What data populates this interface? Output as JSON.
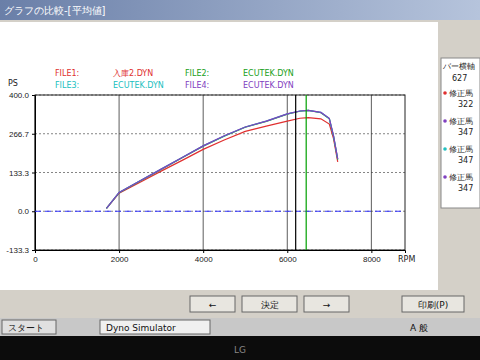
{
  "window": {
    "title": "グラフの比較-[平均値]"
  },
  "chart_data": {
    "type": "line",
    "y_label": "PS",
    "x_label": "RPM",
    "x": [
      1700,
      2000,
      2500,
      3000,
      3500,
      4000,
      4500,
      5000,
      5500,
      6000,
      6300,
      6500,
      6800,
      7000,
      7100,
      7200
    ],
    "series": [
      {
        "file": "FILE1:",
        "name": "入庫2.DYN",
        "color": "#e03030",
        "line_style": "solid",
        "values": [
          10,
          62,
          100,
          138,
          175,
          213,
          245,
          275,
          293,
          310,
          320,
          322,
          318,
          300,
          250,
          170
        ]
      },
      {
        "file": "FILE2:",
        "name": "ECUTEK.DYN",
        "color": "#20a020",
        "line_style": "solid",
        "values": [
          10,
          64,
          104,
          144,
          184,
          224,
          258,
          289,
          309,
          334,
          344,
          347,
          339,
          318,
          258,
          178
        ]
      },
      {
        "file": "FILE3:",
        "name": "ECUTEK.DYN",
        "color": "#20c0c0",
        "line_style": "solid",
        "values": [
          10,
          65,
          105,
          145,
          185,
          225,
          259,
          290,
          310,
          335,
          345,
          347,
          340,
          319,
          259,
          179
        ]
      },
      {
        "file": "FILE4:",
        "name": "ECUTEK.DYN",
        "color": "#8040c0",
        "line_style": "solid",
        "values": [
          10,
          65,
          105,
          145,
          185,
          225,
          260,
          290,
          310,
          335,
          345,
          347,
          340,
          320,
          260,
          180
        ]
      }
    ],
    "xlim": [
      0,
      8800
    ],
    "xticks": [
      0,
      2000,
      4000,
      6000,
      8000
    ],
    "ylim": [
      -133.3,
      400
    ],
    "yticks": [
      {
        "value": 400,
        "label": "400.0"
      },
      266.7,
      133.3,
      {
        "value": 0,
        "label": "0.0"
      },
      -133.3
    ],
    "grid": true,
    "cursors": [
      {
        "x": 6200,
        "color": "#000000"
      },
      {
        "x": 6450,
        "color": "#00a000"
      }
    ],
    "reference_line": {
      "y": 0,
      "color": "#3333ff",
      "line_style": "dashed"
    }
  },
  "side_panel": {
    "title": "バー横軸",
    "value": "627",
    "items": [
      {
        "label": "修正馬",
        "value": "322",
        "color": "#e03030"
      },
      {
        "label": "修正馬",
        "value": "347",
        "color": "#8040c0"
      },
      {
        "label": "修正馬",
        "value": "347",
        "color": "#20c0c0"
      },
      {
        "label": "修正馬",
        "value": "347",
        "color": "#8040c0"
      }
    ]
  },
  "buttons": [
    "←",
    "決定",
    "→",
    "印刷(P)"
  ],
  "taskbar": {
    "start": "スタート",
    "app": "Dyno Simulator",
    "tray": "A 般"
  },
  "monitor": "LG"
}
